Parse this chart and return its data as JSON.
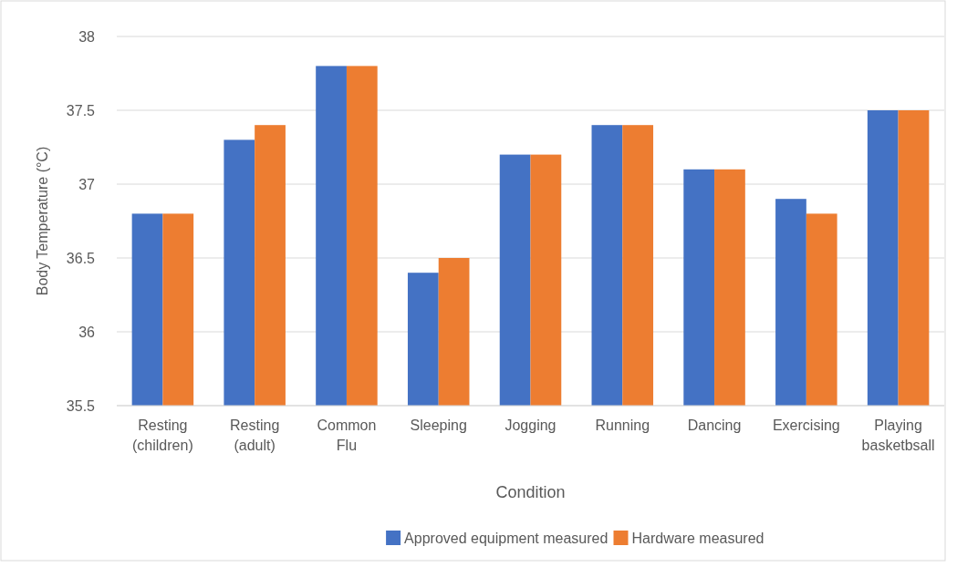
{
  "chart_data": {
    "type": "bar",
    "xlabel": "Condition",
    "ylabel": "Body Temperature (°C)",
    "categories": [
      "Resting (children)",
      "Resting (adult)",
      "Common Flu",
      "Sleeping",
      "Jogging",
      "Running",
      "Dancing",
      "Exercising",
      "Playing basketbsall"
    ],
    "series": [
      {
        "name": "Approved equipment measured",
        "color": "#4472c4",
        "values": [
          36.8,
          37.3,
          37.8,
          36.4,
          37.2,
          37.4,
          37.1,
          36.9,
          37.5
        ]
      },
      {
        "name": "Hardware measured",
        "color": "#ed7d31",
        "values": [
          36.8,
          37.4,
          37.8,
          36.5,
          37.2,
          37.4,
          37.1,
          36.8,
          37.5
        ]
      }
    ],
    "ylim": [
      35.5,
      38
    ],
    "yticks": [
      35.5,
      36,
      36.5,
      37,
      37.5,
      38
    ],
    "grid": "y",
    "legend": "bottom"
  }
}
